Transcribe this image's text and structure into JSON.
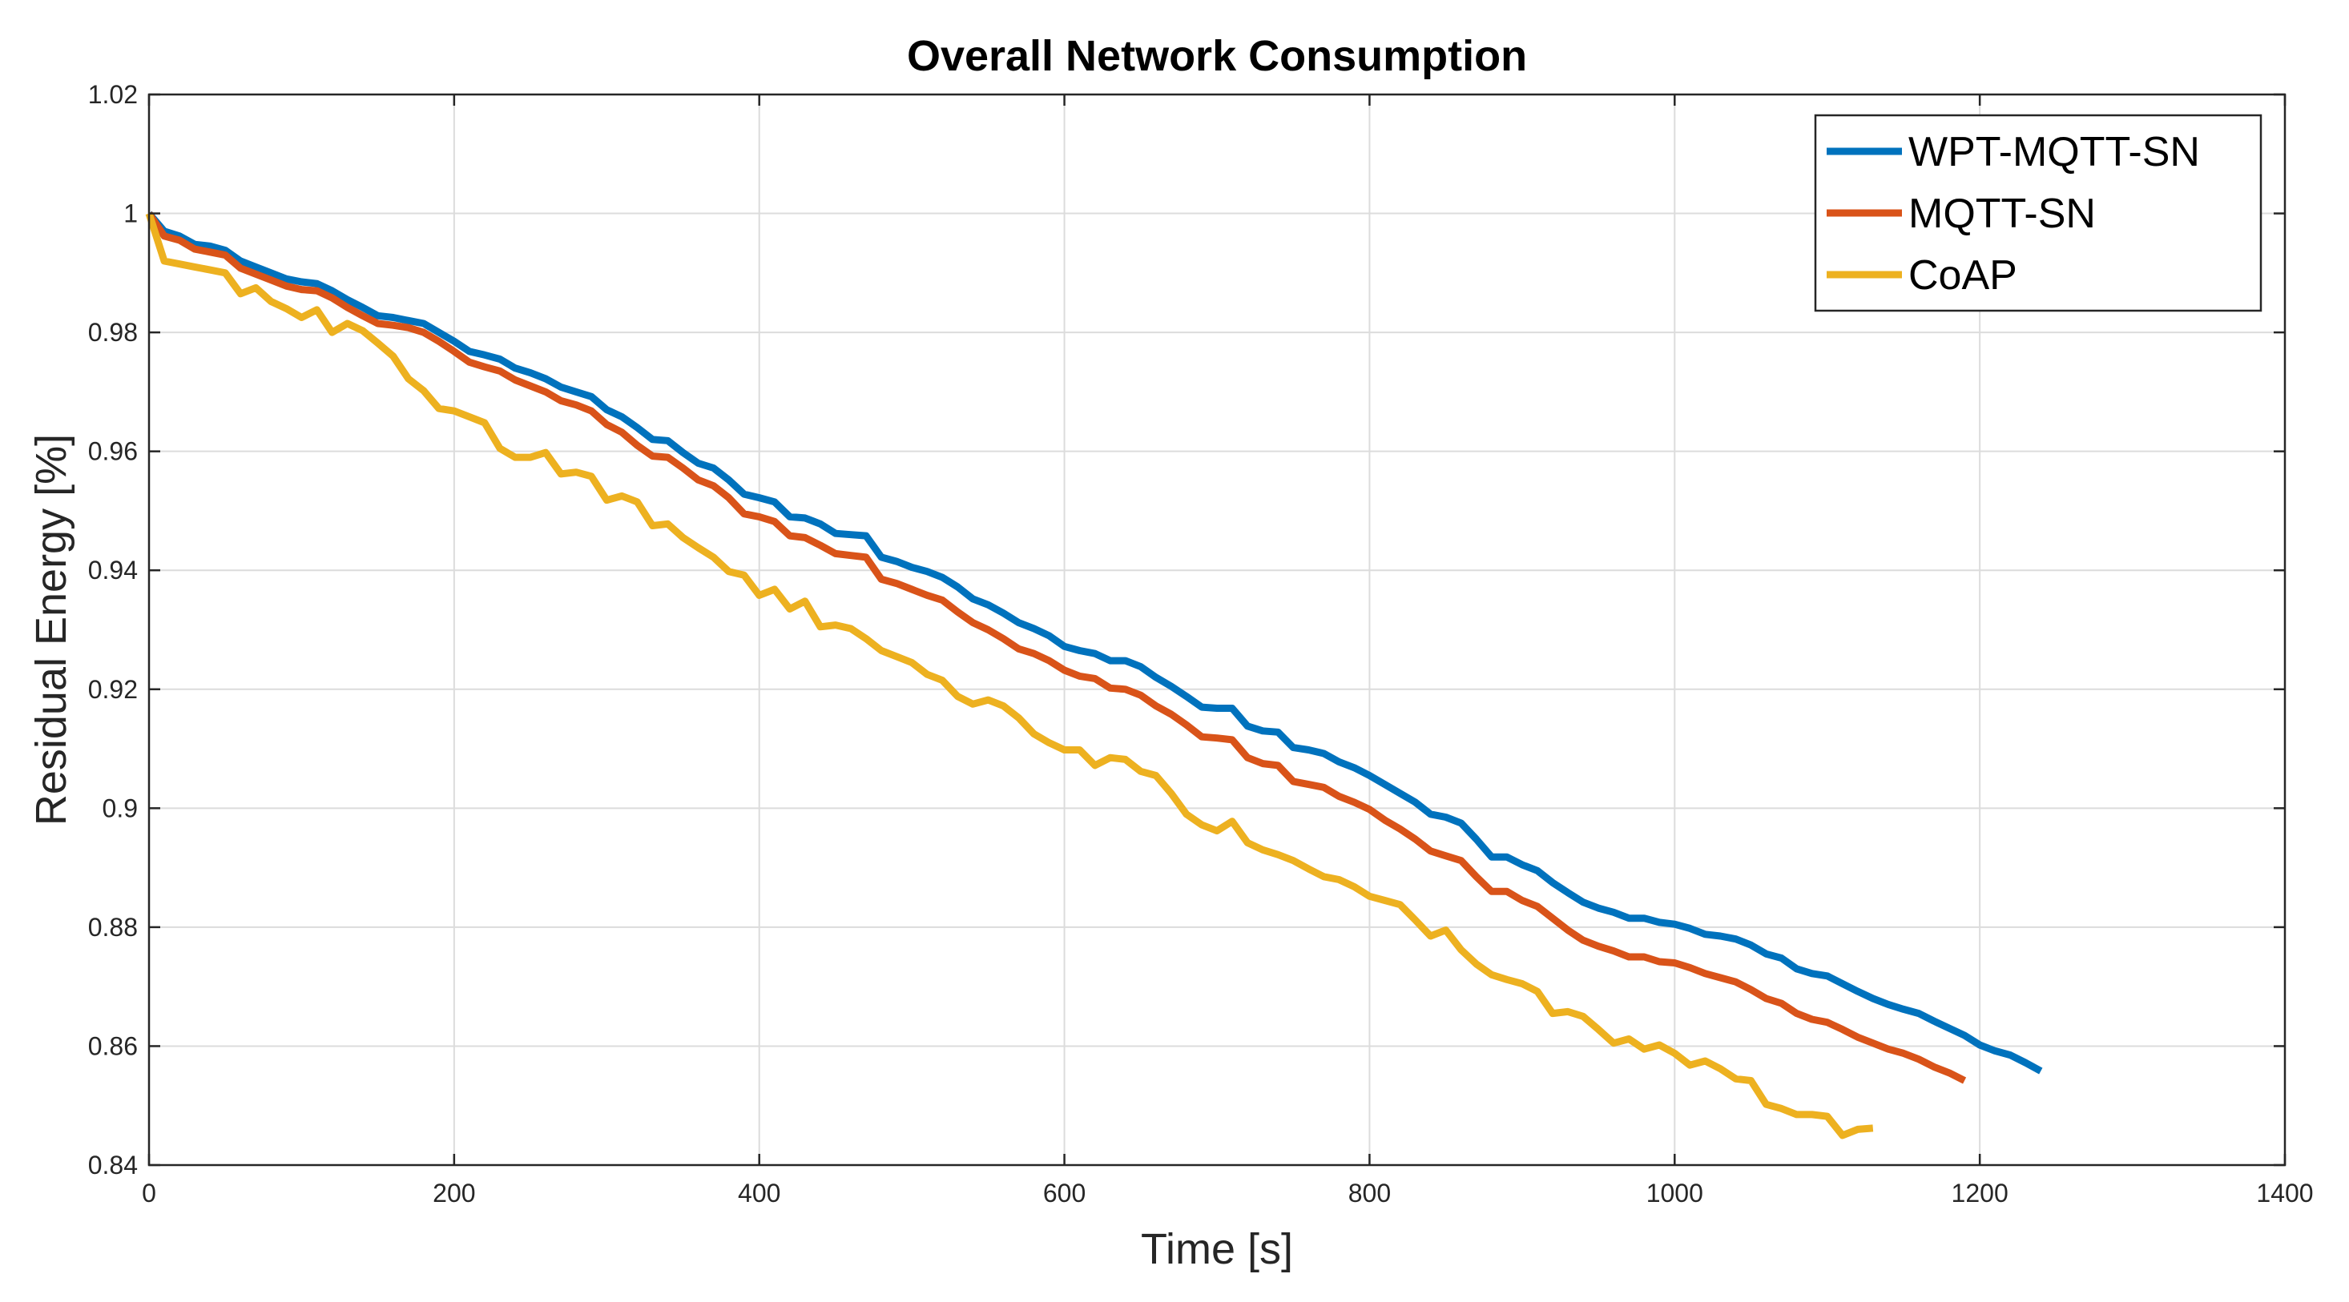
{
  "chart_data": {
    "type": "line",
    "title": "Overall Network Consumption",
    "xlabel": "Time [s]",
    "ylabel": "Residual Energy [%]",
    "xlim": [
      0,
      1400
    ],
    "ylim": [
      0.84,
      1.02
    ],
    "xticks": [
      0,
      200,
      400,
      600,
      800,
      1000,
      1200,
      1400
    ],
    "xtick_labels": [
      "0",
      "200",
      "400",
      "600",
      "800",
      "1000",
      "1200",
      "1400"
    ],
    "yticks": [
      0.84,
      0.86,
      0.88,
      0.9,
      0.92,
      0.94,
      0.96,
      0.98,
      1,
      1.02
    ],
    "ytick_labels": [
      "0.84",
      "0.86",
      "0.88",
      "0.9",
      "0.92",
      "0.94",
      "0.96",
      "0.98",
      "1",
      "1.02"
    ],
    "grid": true,
    "legend_position": "top-right",
    "series": [
      {
        "name": "WPT-MQTT-SN",
        "color": "#0072BD",
        "x": [
          0,
          10,
          20,
          30,
          40,
          50,
          60,
          70,
          80,
          90,
          100,
          110,
          120,
          130,
          140,
          150,
          160,
          170,
          180,
          190,
          200,
          210,
          220,
          230,
          240,
          250,
          260,
          270,
          280,
          290,
          300,
          310,
          320,
          330,
          340,
          350,
          360,
          370,
          380,
          390,
          400,
          410,
          420,
          430,
          440,
          450,
          460,
          470,
          480,
          490,
          500,
          510,
          520,
          530,
          540,
          550,
          560,
          570,
          580,
          590,
          600,
          610,
          620,
          630,
          640,
          650,
          660,
          670,
          680,
          690,
          700,
          710,
          720,
          730,
          740,
          750,
          760,
          770,
          780,
          790,
          800,
          810,
          820,
          830,
          840,
          850,
          860,
          870,
          880,
          890,
          900,
          910,
          920,
          930,
          940,
          950,
          960,
          970,
          980,
          990,
          1000,
          1010,
          1020,
          1030,
          1040,
          1050,
          1060,
          1070,
          1080,
          1090,
          1100,
          1110,
          1120,
          1130,
          1140,
          1150,
          1160,
          1170,
          1180,
          1190,
          1200,
          1210,
          1220,
          1230,
          1240
        ],
        "y": [
          1.0,
          0.997,
          0.9962,
          0.9948,
          0.9945,
          0.9938,
          0.992,
          0.991,
          0.99,
          0.989,
          0.9885,
          0.9882,
          0.987,
          0.9855,
          0.9842,
          0.9828,
          0.9825,
          0.982,
          0.9815,
          0.98,
          0.9785,
          0.9768,
          0.9762,
          0.9755,
          0.974,
          0.9732,
          0.9722,
          0.9708,
          0.97,
          0.9692,
          0.967,
          0.9658,
          0.964,
          0.962,
          0.9618,
          0.9598,
          0.958,
          0.9572,
          0.9552,
          0.9528,
          0.9522,
          0.9515,
          0.949,
          0.9488,
          0.9478,
          0.9462,
          0.946,
          0.9458,
          0.9422,
          0.9415,
          0.9405,
          0.9398,
          0.9388,
          0.9372,
          0.9352,
          0.9342,
          0.9328,
          0.9312,
          0.9302,
          0.929,
          0.9272,
          0.9265,
          0.926,
          0.9248,
          0.9248,
          0.9238,
          0.922,
          0.9205,
          0.9188,
          0.917,
          0.9168,
          0.9168,
          0.9138,
          0.913,
          0.9128,
          0.9102,
          0.9098,
          0.9092,
          0.9078,
          0.9068,
          0.9055,
          0.904,
          0.9025,
          0.901,
          0.899,
          0.8985,
          0.8975,
          0.8948,
          0.8918,
          0.8918,
          0.8905,
          0.8895,
          0.8875,
          0.8858,
          0.8842,
          0.8832,
          0.8825,
          0.8815,
          0.8815,
          0.8808,
          0.8805,
          0.8798,
          0.8788,
          0.8785,
          0.878,
          0.877,
          0.8755,
          0.8748,
          0.873,
          0.8722,
          0.8718,
          0.8705,
          0.8692,
          0.868,
          0.867,
          0.8662,
          0.8655,
          0.8642,
          0.863,
          0.8618,
          0.8602,
          0.8592,
          0.8585,
          0.8572,
          0.8558
        ]
      },
      {
        "name": "MQTT-SN",
        "color": "#D95319",
        "x": [
          0,
          10,
          20,
          30,
          40,
          50,
          60,
          70,
          80,
          90,
          100,
          110,
          120,
          130,
          140,
          150,
          160,
          170,
          180,
          190,
          200,
          210,
          220,
          230,
          240,
          250,
          260,
          270,
          280,
          290,
          300,
          310,
          320,
          330,
          340,
          350,
          360,
          370,
          380,
          390,
          400,
          410,
          420,
          430,
          440,
          450,
          460,
          470,
          480,
          490,
          500,
          510,
          520,
          530,
          540,
          550,
          560,
          570,
          580,
          590,
          600,
          610,
          620,
          630,
          640,
          650,
          660,
          670,
          680,
          690,
          700,
          710,
          720,
          730,
          740,
          750,
          760,
          770,
          780,
          790,
          800,
          810,
          820,
          830,
          840,
          850,
          860,
          870,
          880,
          890,
          900,
          910,
          920,
          930,
          940,
          950,
          960,
          970,
          980,
          990,
          1000,
          1010,
          1020,
          1030,
          1040,
          1050,
          1060,
          1070,
          1080,
          1090,
          1100,
          1110,
          1120,
          1130,
          1140,
          1150,
          1160,
          1170,
          1180,
          1190
        ],
        "y": [
          1.0,
          0.9962,
          0.9955,
          0.994,
          0.9935,
          0.993,
          0.9908,
          0.9898,
          0.9888,
          0.9878,
          0.9872,
          0.987,
          0.9858,
          0.9842,
          0.9828,
          0.9815,
          0.9812,
          0.9808,
          0.98,
          0.9785,
          0.9768,
          0.975,
          0.9742,
          0.9735,
          0.972,
          0.971,
          0.97,
          0.9685,
          0.9678,
          0.9668,
          0.9645,
          0.9632,
          0.961,
          0.9592,
          0.959,
          0.9572,
          0.9552,
          0.9542,
          0.9522,
          0.9495,
          0.949,
          0.9482,
          0.9458,
          0.9455,
          0.9442,
          0.9428,
          0.9425,
          0.9422,
          0.9385,
          0.9378,
          0.9368,
          0.9358,
          0.935,
          0.933,
          0.9312,
          0.93,
          0.9285,
          0.9268,
          0.926,
          0.9248,
          0.9232,
          0.9222,
          0.9218,
          0.9202,
          0.92,
          0.919,
          0.9172,
          0.9158,
          0.914,
          0.912,
          0.9118,
          0.9115,
          0.9085,
          0.9075,
          0.9072,
          0.9045,
          0.904,
          0.9035,
          0.902,
          0.901,
          0.8998,
          0.898,
          0.8965,
          0.8948,
          0.8928,
          0.892,
          0.8912,
          0.8885,
          0.886,
          0.886,
          0.8845,
          0.8835,
          0.8815,
          0.8795,
          0.8778,
          0.8768,
          0.876,
          0.875,
          0.875,
          0.8742,
          0.874,
          0.8732,
          0.8722,
          0.8715,
          0.8708,
          0.8695,
          0.868,
          0.8672,
          0.8655,
          0.8645,
          0.864,
          0.8628,
          0.8615,
          0.8605,
          0.8595,
          0.8588,
          0.8578,
          0.8565,
          0.8555,
          0.8542
        ]
      },
      {
        "name": "CoAP",
        "color": "#EDB120",
        "x": [
          0,
          10,
          20,
          30,
          40,
          50,
          60,
          70,
          80,
          90,
          100,
          110,
          120,
          130,
          140,
          150,
          160,
          170,
          180,
          190,
          200,
          210,
          220,
          230,
          240,
          250,
          260,
          270,
          280,
          290,
          300,
          310,
          320,
          330,
          340,
          350,
          360,
          370,
          380,
          390,
          400,
          410,
          420,
          430,
          440,
          450,
          460,
          470,
          480,
          490,
          500,
          510,
          520,
          530,
          540,
          550,
          560,
          570,
          580,
          590,
          600,
          610,
          620,
          630,
          640,
          650,
          660,
          670,
          680,
          690,
          700,
          710,
          720,
          730,
          740,
          750,
          760,
          770,
          780,
          790,
          800,
          810,
          820,
          830,
          840,
          850,
          860,
          870,
          880,
          890,
          900,
          910,
          920,
          930,
          940,
          950,
          960,
          970,
          980,
          990,
          1000,
          1010,
          1020,
          1030,
          1040,
          1050,
          1060,
          1070,
          1080,
          1090,
          1100,
          1110,
          1120,
          1130
        ],
        "y": [
          1.0,
          0.992,
          0.9915,
          0.991,
          0.9905,
          0.99,
          0.9865,
          0.9875,
          0.9852,
          0.984,
          0.9825,
          0.9838,
          0.98,
          0.9815,
          0.9803,
          0.9782,
          0.976,
          0.9722,
          0.9702,
          0.9672,
          0.9668,
          0.9658,
          0.9648,
          0.9605,
          0.959,
          0.959,
          0.9598,
          0.9562,
          0.9565,
          0.9558,
          0.9518,
          0.9525,
          0.9515,
          0.9475,
          0.9478,
          0.9455,
          0.9438,
          0.9422,
          0.9398,
          0.9392,
          0.9358,
          0.9368,
          0.9335,
          0.9348,
          0.9305,
          0.9308,
          0.9302,
          0.9285,
          0.9265,
          0.9255,
          0.9245,
          0.9225,
          0.9215,
          0.9188,
          0.9175,
          0.9182,
          0.9172,
          0.9152,
          0.9125,
          0.911,
          0.9098,
          0.9098,
          0.9072,
          0.9085,
          0.9082,
          0.9062,
          0.9055,
          0.9025,
          0.899,
          0.8972,
          0.8962,
          0.8978,
          0.8942,
          0.893,
          0.8922,
          0.8912,
          0.8898,
          0.8885,
          0.888,
          0.8868,
          0.8852,
          0.8845,
          0.8838,
          0.8812,
          0.8785,
          0.8795,
          0.8762,
          0.8738,
          0.872,
          0.8712,
          0.8705,
          0.8692,
          0.8655,
          0.8658,
          0.865,
          0.8628,
          0.8605,
          0.8612,
          0.8595,
          0.8602,
          0.8588,
          0.8568,
          0.8575,
          0.8562,
          0.8545,
          0.8542,
          0.8502,
          0.8495,
          0.8485,
          0.8485,
          0.8482,
          0.845,
          0.846,
          0.8462
        ]
      }
    ]
  }
}
